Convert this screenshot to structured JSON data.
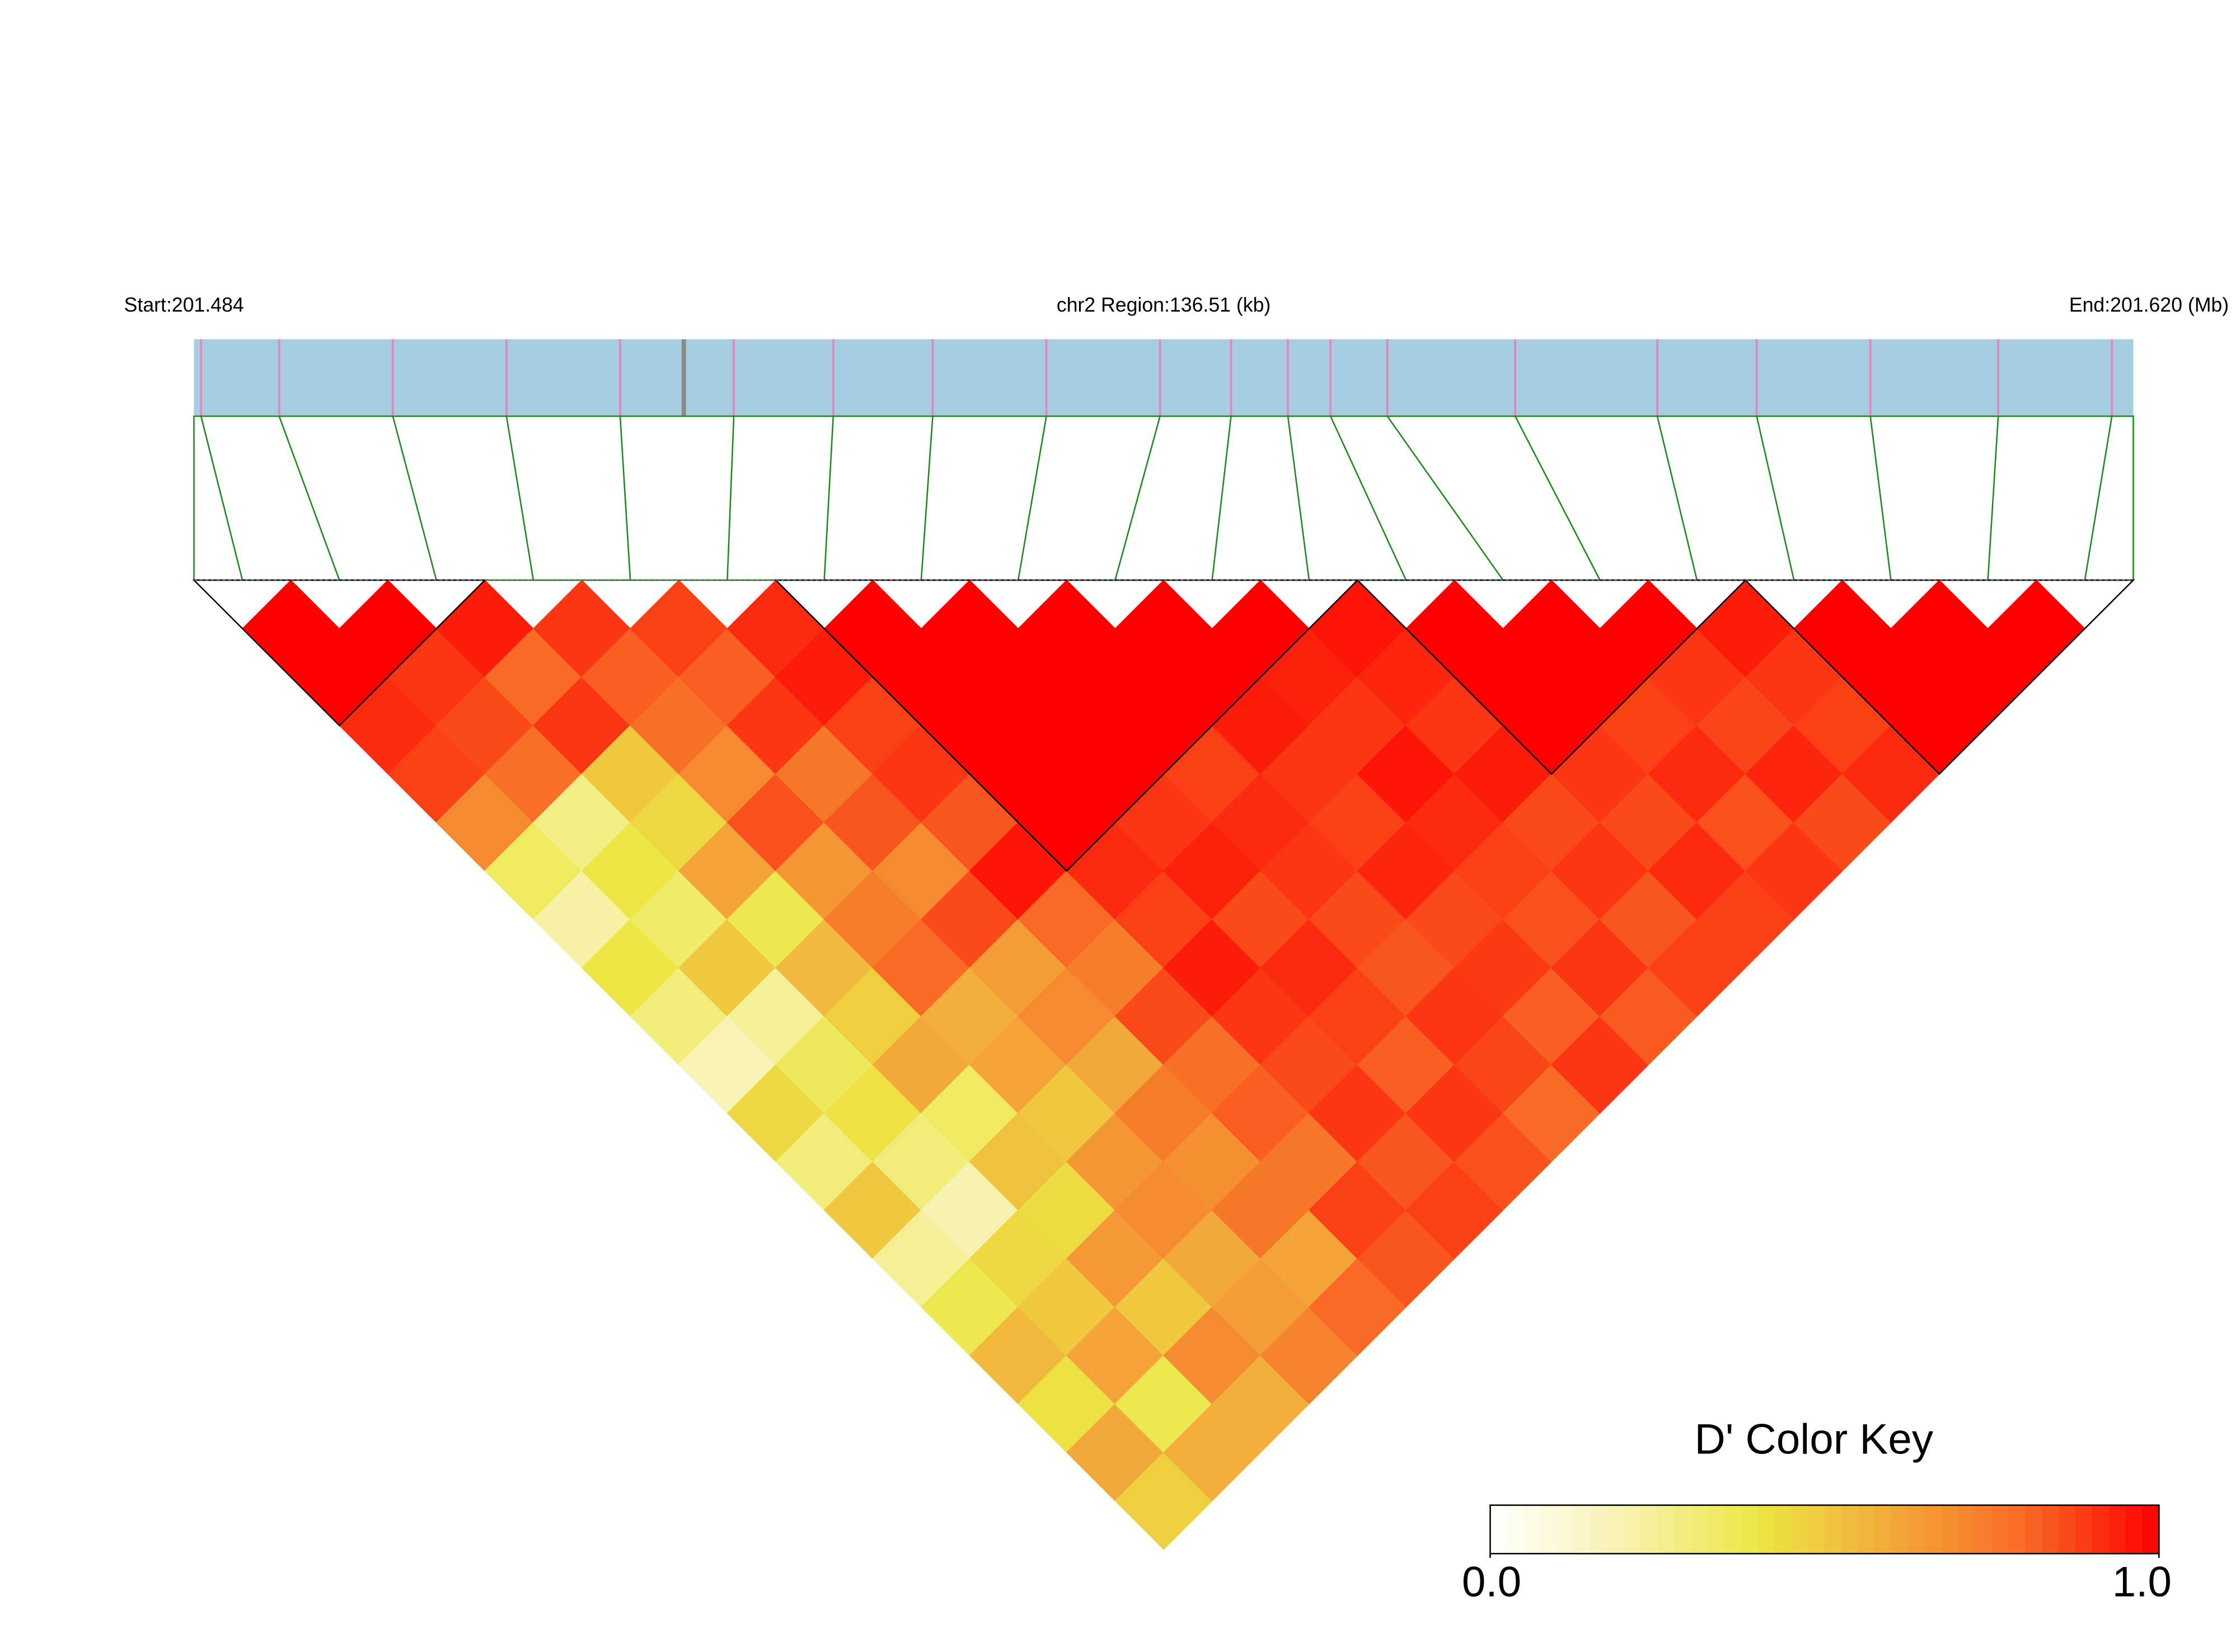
{
  "chart_data": {
    "type": "ld_heatmap",
    "start_label": "Start:201.484",
    "region_label": "chr2 Region:136.51 (kb)",
    "end_label": "End:201.620 (Mb)",
    "region_kb": 136.51,
    "snp_positions": [
      0.5,
      6,
      14,
      22,
      30,
      38,
      45,
      52,
      60,
      68,
      73,
      77,
      80,
      84,
      93,
      103,
      110,
      118,
      127,
      135
    ],
    "dprime": [
      [
        1.0,
        1.0,
        0.92,
        0.88,
        0.7,
        0.35,
        0.22,
        0.4,
        0.3,
        0.18,
        0.45,
        0.3,
        0.5,
        0.25,
        0.38,
        0.55,
        0.42,
        0.6,
        0.48
      ],
      [
        1.0,
        0.9,
        0.86,
        0.78,
        0.28,
        0.4,
        0.33,
        0.5,
        0.24,
        0.36,
        0.42,
        0.3,
        0.2,
        0.45,
        0.5,
        0.62,
        0.38,
        0.58
      ],
      [
        0.95,
        0.8,
        0.9,
        0.5,
        0.45,
        0.62,
        0.38,
        0.55,
        0.48,
        0.6,
        0.35,
        0.52,
        0.44,
        0.65,
        0.5,
        0.7,
        0.58
      ],
      [
        0.9,
        0.82,
        0.78,
        0.7,
        0.85,
        0.66,
        0.74,
        0.8,
        0.58,
        0.62,
        0.5,
        0.66,
        0.7,
        0.6,
        0.64,
        0.72
      ],
      [
        0.88,
        0.82,
        0.9,
        0.76,
        0.84,
        0.7,
        0.86,
        0.64,
        0.7,
        0.6,
        0.74,
        0.68,
        0.76,
        0.62,
        0.8
      ],
      [
        0.92,
        0.95,
        0.88,
        0.9,
        0.84,
        0.96,
        0.8,
        0.74,
        0.86,
        0.78,
        0.82,
        0.76,
        0.88,
        0.84
      ],
      [
        1.0,
        1.0,
        1.0,
        1.0,
        1.0,
        0.92,
        0.88,
        0.95,
        0.9,
        0.86,
        0.9,
        0.84,
        0.88
      ],
      [
        1.0,
        1.0,
        1.0,
        1.0,
        0.9,
        0.94,
        0.86,
        0.92,
        0.88,
        0.82,
        0.9,
        0.85
      ],
      [
        1.0,
        1.0,
        1.0,
        0.88,
        0.92,
        0.9,
        0.86,
        0.84,
        0.9,
        0.87,
        0.8
      ],
      [
        1.0,
        1.0,
        0.95,
        0.9,
        0.88,
        0.93,
        0.86,
        0.89,
        0.82,
        0.9
      ],
      [
        1.0,
        0.94,
        0.9,
        0.96,
        0.92,
        0.88,
        0.85,
        0.9,
        0.83
      ],
      [
        0.96,
        0.93,
        0.9,
        0.95,
        0.86,
        0.9,
        0.84,
        0.88
      ],
      [
        1.0,
        1.0,
        1.0,
        0.9,
        0.86,
        0.92,
        0.88
      ],
      [
        1.0,
        1.0,
        0.88,
        0.92,
        0.85,
        0.9
      ],
      [
        1.0,
        0.9,
        0.87,
        0.93,
        0.86
      ],
      [
        0.95,
        0.9,
        0.88,
        0.92
      ],
      [
        1.0,
        1.0,
        1.0
      ],
      [
        1.0,
        1.0
      ],
      [
        1.0
      ]
    ],
    "blocks": [
      [
        0,
        2
      ],
      [
        6,
        11
      ],
      [
        12,
        15
      ],
      [
        16,
        19
      ]
    ],
    "key_title": "D' Color Key",
    "clim": [
      0,
      1
    ],
    "key_ticks": [
      {
        "value": 0,
        "label": "0.0"
      },
      {
        "value": 1,
        "label": "1.0"
      }
    ],
    "palette": [
      "#ffffff",
      "#f8f2b0",
      "#ece744",
      "#f3a93a",
      "#f86a25",
      "#ff0000"
    ],
    "gene_bar_color": "#a6cde0",
    "snp_mark_color": "#e585bd",
    "connector_color": "#1a8a1a"
  }
}
